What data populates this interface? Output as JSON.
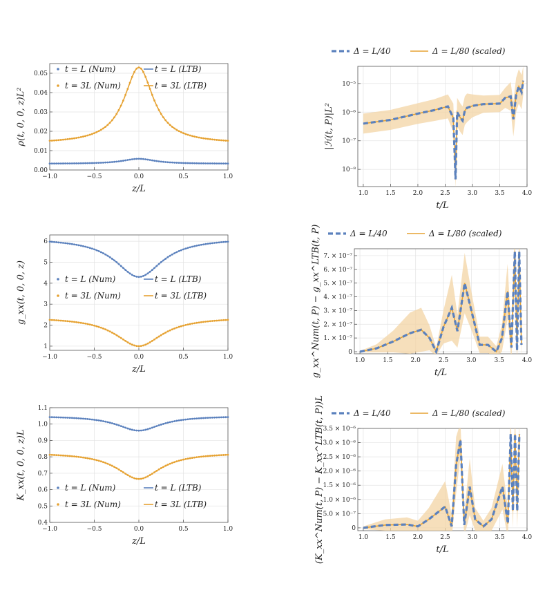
{
  "colors": {
    "blue": "#5b81bd",
    "orange": "#e6a232",
    "band": "#f3d4a4"
  },
  "chart_data": [
    {
      "id": "rho",
      "type": "line",
      "ylabel": "ρ(t, 0, 0, z)L²",
      "xlabel": "z/L",
      "xlim": [
        -1,
        1
      ],
      "ylim": [
        0,
        0.055
      ],
      "xticks": [
        -1,
        -0.5,
        0,
        0.5,
        1
      ],
      "xtick_labels": [
        "−1.0",
        "−0.5",
        "0.0",
        "0.5",
        "1.0"
      ],
      "yticks": [
        0,
        0.01,
        0.02,
        0.03,
        0.04,
        0.05
      ],
      "ytick_labels": [
        "0.00",
        "0.01",
        "0.02",
        "0.03",
        "0.04",
        "0.05"
      ],
      "legend": [
        "t = L (Num)",
        "t = 3L (Num)",
        "t = L (LTB)",
        "t = 3L (LTB)"
      ],
      "curves": [
        {
          "series": "t = L",
          "color": "blue",
          "base": 0.0032,
          "peak": 0.0058,
          "width": 0.22
        },
        {
          "series": "t = 3L",
          "color": "orange",
          "base": 0.0136,
          "peak": 0.053,
          "width": 0.2
        }
      ]
    },
    {
      "id": "gxx",
      "type": "line",
      "ylabel": "g_xx(t, 0, 0, z)",
      "xlabel": "z/L",
      "xlim": [
        -1,
        1
      ],
      "ylim": [
        0.8,
        6.3
      ],
      "xticks": [
        -1,
        -0.5,
        0,
        0.5,
        1
      ],
      "xtick_labels": [
        "−1.0",
        "−0.5",
        "0.0",
        "0.5",
        "1.0"
      ],
      "yticks": [
        1,
        2,
        3,
        4,
        5,
        6
      ],
      "ytick_labels": [
        "1",
        "2",
        "3",
        "4",
        "5",
        "6"
      ],
      "legend": [
        "t = L (Num)",
        "t = 3L (Num)",
        "t = L (LTB)",
        "t = 3L (LTB)"
      ],
      "curves": [
        {
          "series": "t = L",
          "color": "blue",
          "base": 6.15,
          "peak": 4.3,
          "width": 0.32
        },
        {
          "series": "t = 3L",
          "color": "orange",
          "base": 2.38,
          "peak": 1.0,
          "width": 0.32
        }
      ]
    },
    {
      "id": "kxx",
      "type": "line",
      "ylabel": "K_xx(t, 0, 0, z)L",
      "xlabel": "z/L",
      "xlim": [
        -1,
        1
      ],
      "ylim": [
        0.4,
        1.1
      ],
      "xticks": [
        -1,
        -0.5,
        0,
        0.5,
        1
      ],
      "xtick_labels": [
        "−1.0",
        "−0.5",
        "0.0",
        "0.5",
        "1.0"
      ],
      "yticks": [
        0.4,
        0.5,
        0.6,
        0.7,
        0.8,
        0.9,
        1.0,
        1.1
      ],
      "ytick_labels": [
        "0.4",
        "0.5",
        "0.6",
        "0.7",
        "0.8",
        "0.9",
        "1.0",
        "1.1"
      ],
      "legend": [
        "t = L (Num)",
        "t = 3L (Num)",
        "t = L (LTB)",
        "t = 3L (LTB)"
      ],
      "curves": [
        {
          "series": "t = L",
          "color": "blue",
          "base": 1.05,
          "peak": 0.96,
          "width": 0.3
        },
        {
          "series": "t = 3L",
          "color": "orange",
          "base": 0.826,
          "peak": 0.665,
          "width": 0.3
        }
      ]
    },
    {
      "id": "ham",
      "type": "line",
      "yscale": "log",
      "ylabel": "|ℋ(t, P)|L²",
      "xlabel": "t/L",
      "xlim": [
        0.9,
        4.0
      ],
      "ylim": [
        -8.6,
        -4.4
      ],
      "xticks": [
        1,
        1.5,
        2,
        2.5,
        3,
        3.5,
        4
      ],
      "xtick_labels": [
        "1.0",
        "1.5",
        "2.0",
        "2.5",
        "3.0",
        "3.5",
        "4.0"
      ],
      "yticks": [
        -8,
        -7,
        -6,
        -5
      ],
      "ytick_labels": [
        "10⁻⁸",
        "10⁻⁷",
        "10⁻⁶",
        "10⁻⁵"
      ],
      "legend": [
        "Δ = L/40",
        "Δ = L/80 (scaled)"
      ],
      "x": [
        1.0,
        1.5,
        2.0,
        2.3,
        2.55,
        2.65,
        2.69,
        2.72,
        2.78,
        2.82,
        2.86,
        2.9,
        3.0,
        3.2,
        3.5,
        3.6,
        3.7,
        3.75,
        3.8,
        3.85,
        3.9,
        3.93
      ],
      "y": [
        -6.4,
        -6.27,
        -6.05,
        -5.93,
        -5.8,
        -6.2,
        -8.35,
        -6.0,
        -6.2,
        -6.3,
        -5.95,
        -5.85,
        -5.78,
        -5.72,
        -5.7,
        -5.5,
        -5.45,
        -6.25,
        -5.4,
        -5.1,
        -5.3,
        -4.9
      ],
      "band": [
        0.35,
        0.35,
        0.36,
        0.38,
        0.42,
        0.5,
        0.3,
        0.5,
        0.5,
        0.5,
        0.5,
        0.5,
        0.4,
        0.3,
        0.3,
        0.35,
        0.5,
        0.6,
        0.6,
        0.6,
        0.6,
        0.5
      ]
    },
    {
      "id": "gdiff",
      "type": "line",
      "ylabel": "g_xx^Num(t, P) − g_xx^LTB(t, P)",
      "xlabel": "t/L",
      "xlim": [
        0.9,
        4.0
      ],
      "ylim": [
        -0.15,
        7.5
      ],
      "xticks": [
        1,
        1.5,
        2,
        2.5,
        3,
        3.5,
        4
      ],
      "xtick_labels": [
        "1.0",
        "1.5",
        "2.0",
        "2.5",
        "3.0",
        "3.5",
        "4.0"
      ],
      "yticks": [
        0,
        1,
        2,
        3,
        4,
        5,
        6,
        7
      ],
      "ytick_labels": [
        "0",
        "1. × 10⁻⁷",
        "2. × 10⁻⁷",
        "3. × 10⁻⁷",
        "4. × 10⁻⁷",
        "5. × 10⁻⁷",
        "6. × 10⁻⁷",
        "7. × 10⁻⁷"
      ],
      "legend": [
        "Δ = L/40",
        "Δ = L/80 (scaled)"
      ],
      "x": [
        1.0,
        1.3,
        1.6,
        1.9,
        2.1,
        2.25,
        2.37,
        2.5,
        2.65,
        2.75,
        2.88,
        3.0,
        3.15,
        3.3,
        3.45,
        3.55,
        3.65,
        3.72,
        3.78,
        3.82,
        3.86,
        3.9
      ],
      "y": [
        0.0,
        0.25,
        0.75,
        1.35,
        1.6,
        1.0,
        0.0,
        1.8,
        3.2,
        1.5,
        5.0,
        3.0,
        0.5,
        0.5,
        0.0,
        1.0,
        4.4,
        0.3,
        7.3,
        0.1,
        7.3,
        0.5
      ],
      "band": [
        0.05,
        0.3,
        0.8,
        1.5,
        1.6,
        0.9,
        0.3,
        1.2,
        2.4,
        1.2,
        2.2,
        1.4,
        0.6,
        0.6,
        0.4,
        1.0,
        2.0,
        1.0,
        2.0,
        1.0,
        2.0,
        1.0
      ]
    },
    {
      "id": "kdiff",
      "type": "line",
      "ylabel": "(K_xx^Num(t, P) − K_xx^LTB(t, P))L",
      "xlabel": "t/L",
      "xlim": [
        0.9,
        4.0
      ],
      "ylim": [
        -0.1,
        3.5
      ],
      "xticks": [
        1,
        1.5,
        2,
        2.5,
        3,
        3.5,
        4
      ],
      "xtick_labels": [
        "1.0",
        "1.5",
        "2.0",
        "2.5",
        "3.0",
        "3.5",
        "4.0"
      ],
      "yticks": [
        0,
        0.5,
        1,
        1.5,
        2,
        2.5,
        3,
        3.5
      ],
      "ytick_labels": [
        "0",
        "5.0 × 10⁻⁷",
        "1.0 × 10⁻⁶",
        "1.5 × 10⁻⁶",
        "2.0 × 10⁻⁶",
        "2.5 × 10⁻⁶",
        "3.0 × 10⁻⁶",
        "3.5 × 10⁻⁶"
      ],
      "legend": [
        "Δ = L/40",
        "Δ = L/80 (scaled)"
      ],
      "x": [
        1.0,
        1.4,
        1.8,
        2.0,
        2.2,
        2.5,
        2.62,
        2.7,
        2.78,
        2.85,
        2.95,
        3.05,
        3.2,
        3.35,
        3.55,
        3.65,
        3.7,
        3.74,
        3.78,
        3.82,
        3.86
      ],
      "y": [
        0.0,
        0.1,
        0.12,
        0.05,
        0.3,
        0.75,
        0.05,
        2.2,
        3.1,
        0.1,
        1.45,
        0.3,
        0.05,
        0.3,
        1.45,
        0.15,
        3.3,
        0.6,
        3.3,
        0.6,
        3.3
      ],
      "band": [
        0.05,
        0.2,
        0.25,
        0.2,
        0.4,
        0.9,
        0.4,
        1.0,
        0.6,
        0.4,
        1.0,
        0.4,
        0.2,
        0.4,
        0.8,
        0.5,
        0.8,
        0.6,
        0.8,
        0.6,
        0.8
      ]
    }
  ]
}
